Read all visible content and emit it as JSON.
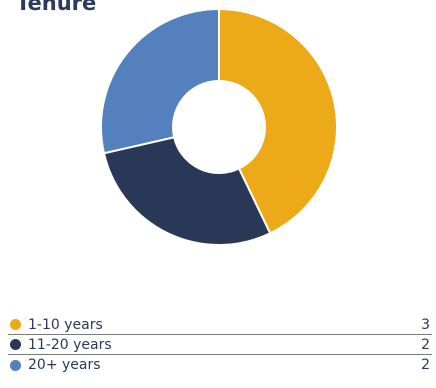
{
  "chart_data": {
    "type": "pie",
    "variant": "donut",
    "title": "Tenure",
    "categories": [
      "1-10 years",
      "11-20 years",
      "20+ years"
    ],
    "values": [
      3,
      2,
      2
    ],
    "colors": [
      "#ECAA18",
      "#2A3858",
      "#5480BD"
    ],
    "legend": "bottom"
  }
}
